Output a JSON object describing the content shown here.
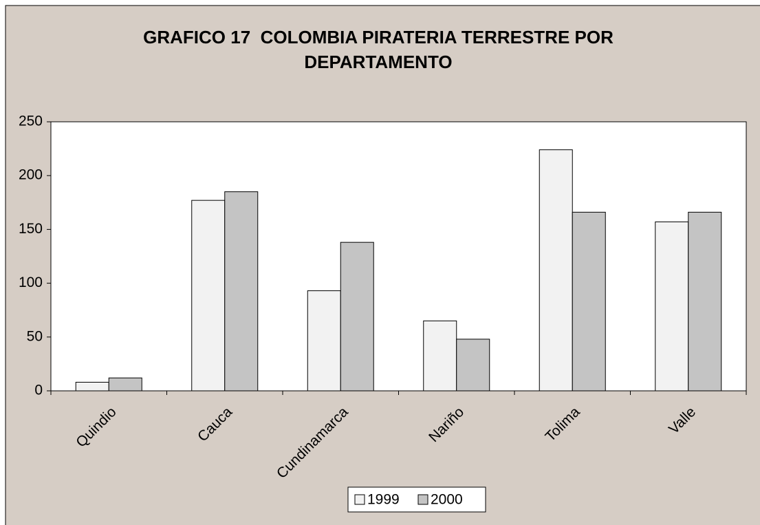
{
  "chart_data": {
    "type": "bar",
    "title": "GRAFICO 17  COLOMBIA PIRATERIA TERRESTRE POR DEPARTAMENTO",
    "categories": [
      "Quindio",
      "Cauca",
      "Cundinamarca",
      "Nariño",
      "Tolima",
      "Valle"
    ],
    "series": [
      {
        "name": "1999",
        "color": "#f2f2f2",
        "values": [
          8,
          177,
          93,
          65,
          224,
          157
        ]
      },
      {
        "name": "2000",
        "color": "#c4c4c4",
        "values": [
          12,
          185,
          138,
          48,
          166,
          166
        ]
      }
    ],
    "ylim": [
      0,
      250
    ],
    "yticks": [
      0,
      50,
      100,
      150,
      200,
      250
    ],
    "grid": false,
    "legend": "bottom"
  }
}
